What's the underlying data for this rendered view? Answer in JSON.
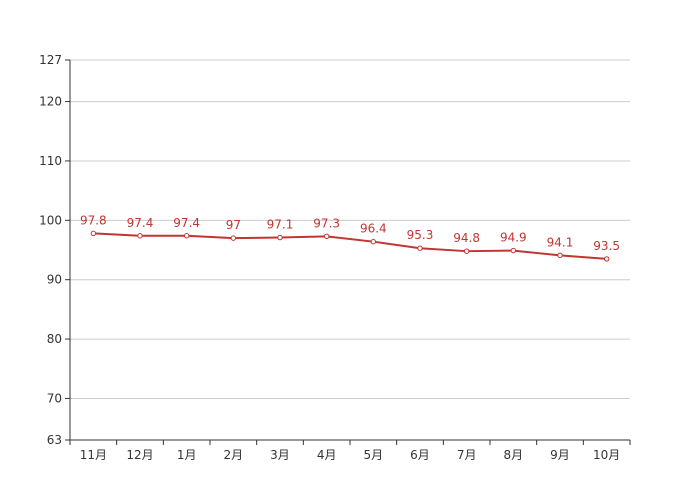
{
  "chart_data": {
    "type": "line",
    "categories": [
      "11月",
      "12月",
      "1月",
      "2月",
      "3月",
      "4月",
      "5月",
      "6月",
      "7月",
      "8月",
      "9月",
      "10月"
    ],
    "series": [
      {
        "values": [
          97.8,
          97.4,
          97.4,
          97,
          97.1,
          97.3,
          96.4,
          95.3,
          94.8,
          94.9,
          94.1,
          93.5
        ]
      }
    ],
    "value_labels": [
      "97.8",
      "97.4",
      "97.4",
      "97",
      "97.1",
      "97.3",
      "96.4",
      "95.3",
      "94.8",
      "94.9",
      "94.1",
      "93.5"
    ],
    "y_ticks": [
      63,
      70,
      80,
      90,
      100,
      110,
      120,
      127
    ],
    "y_tick_labels": [
      "63",
      "70",
      "80",
      "90",
      "100",
      "110",
      "120",
      "127"
    ],
    "ylim": [
      63,
      127
    ],
    "grid": true,
    "legend": "none",
    "colors": {
      "series": "#c23531",
      "grid": "#cccccc",
      "axis": "#333333",
      "text": "#333333"
    }
  }
}
